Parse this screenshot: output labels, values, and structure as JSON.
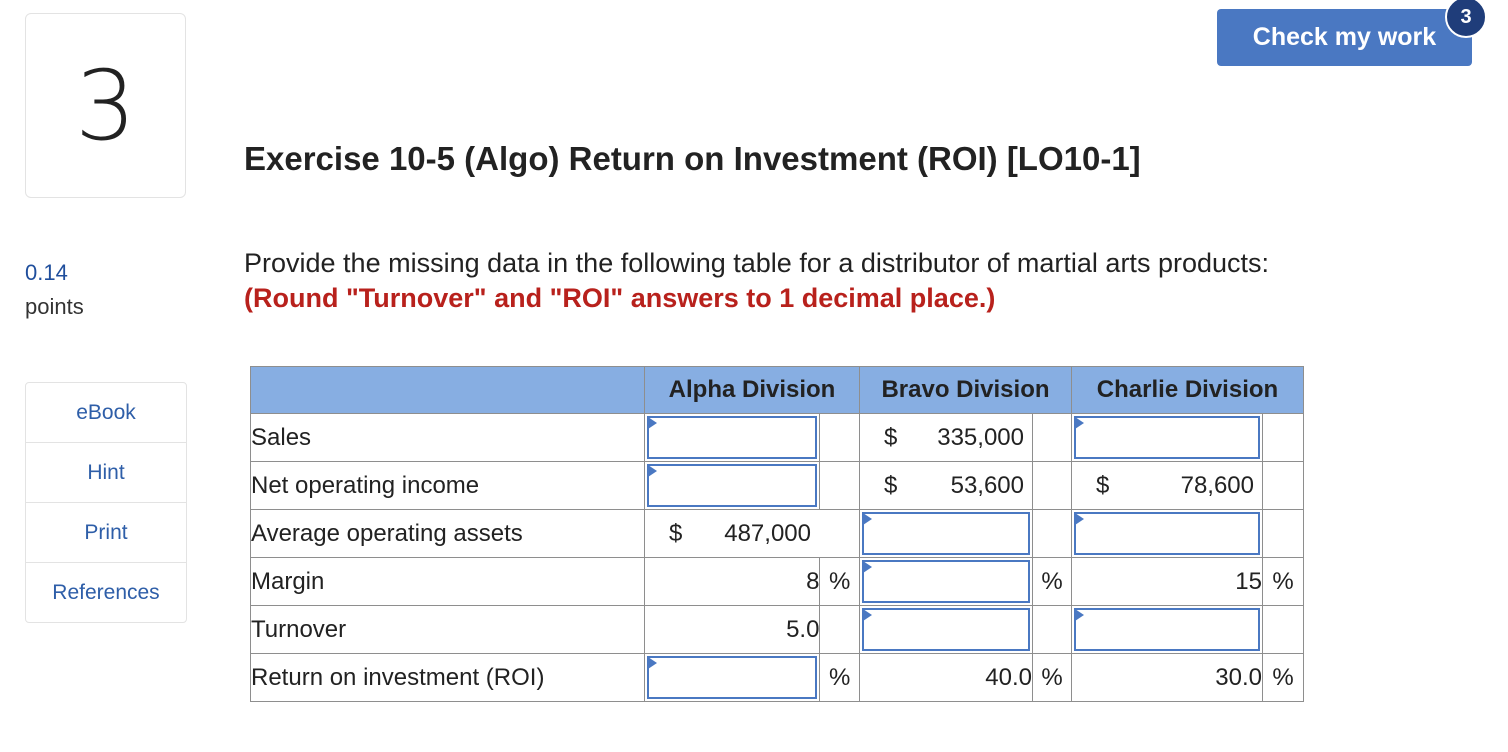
{
  "question": {
    "number": "3"
  },
  "check_button": {
    "label": "Check my work",
    "badge": "3"
  },
  "title": "Exercise 10-5 (Algo) Return on Investment (ROI) [LO10-1]",
  "points": {
    "value": "0.14",
    "label": "points"
  },
  "instructions": {
    "text": "Provide the missing data in the following table for a distributor of martial arts products:",
    "note": "(Round \"Turnover\" and \"ROI\" answers to 1 decimal place.)"
  },
  "sidebar": {
    "items": [
      {
        "label": "eBook"
      },
      {
        "label": "Hint"
      },
      {
        "label": "Print"
      },
      {
        "label": "References"
      }
    ]
  },
  "table": {
    "headers": [
      "",
      "Alpha Division",
      "Bravo Division",
      "Charlie Division"
    ],
    "rows": [
      {
        "label": "Sales",
        "alpha": "",
        "bravo_sign": "$",
        "bravo": "335,000",
        "charlie": ""
      },
      {
        "label": "Net operating income",
        "alpha": "",
        "bravo_sign": "$",
        "bravo": "53,600",
        "charlie_sign": "$",
        "charlie": "78,600"
      },
      {
        "label": "Average operating assets",
        "alpha_sign": "$",
        "alpha": "487,000",
        "bravo": "",
        "charlie": ""
      },
      {
        "label": "Margin",
        "alpha": "8",
        "alpha_unit": "%",
        "bravo": "",
        "bravo_unit": "%",
        "charlie": "15",
        "charlie_unit": "%"
      },
      {
        "label": "Turnover",
        "alpha": "5.0",
        "bravo": "",
        "charlie": ""
      },
      {
        "label": "Return on investment (ROI)",
        "alpha": "",
        "alpha_unit": "%",
        "bravo": "40.0",
        "bravo_unit": "%",
        "charlie": "30.0",
        "charlie_unit": "%"
      }
    ]
  }
}
